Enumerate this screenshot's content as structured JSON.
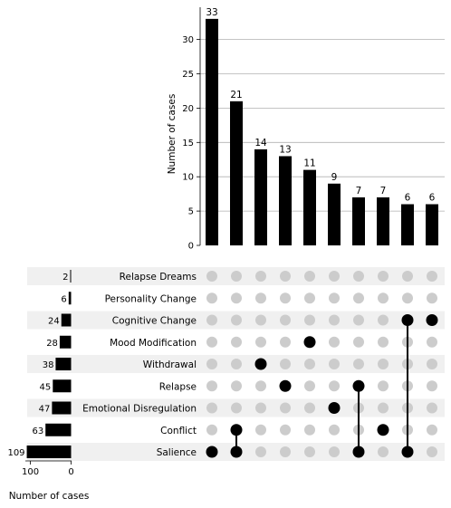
{
  "chart_data": {
    "type": "upset",
    "intersection_axis": {
      "ylabel": "Number of cases",
      "ylim": [
        0,
        35
      ],
      "ticks": [
        0,
        5,
        10,
        15,
        20,
        25,
        30
      ],
      "grid": true
    },
    "set_size_axis": {
      "xlabel": "Number of cases",
      "xlim": [
        0,
        112
      ],
      "ticks": [
        100,
        0
      ]
    },
    "sets": [
      {
        "name": "Relapse Dreams",
        "size": 2
      },
      {
        "name": "Personality Change",
        "size": 6
      },
      {
        "name": "Cognitive Change",
        "size": 24
      },
      {
        "name": "Mood Modification",
        "size": 28
      },
      {
        "name": "Withdrawal",
        "size": 38
      },
      {
        "name": "Relapse",
        "size": 45
      },
      {
        "name": "Emotional Disregulation",
        "size": 47
      },
      {
        "name": "Conflict",
        "size": 63
      },
      {
        "name": "Salience",
        "size": 109
      }
    ],
    "intersections": [
      {
        "count": 33,
        "sets": [
          "Salience"
        ]
      },
      {
        "count": 21,
        "sets": [
          "Conflict",
          "Salience"
        ]
      },
      {
        "count": 14,
        "sets": [
          "Withdrawal"
        ]
      },
      {
        "count": 13,
        "sets": [
          "Relapse"
        ]
      },
      {
        "count": 11,
        "sets": [
          "Mood Modification"
        ]
      },
      {
        "count": 9,
        "sets": [
          "Emotional Disregulation"
        ]
      },
      {
        "count": 7,
        "sets": [
          "Relapse",
          "Salience"
        ]
      },
      {
        "count": 7,
        "sets": [
          "Conflict"
        ]
      },
      {
        "count": 6,
        "sets": [
          "Cognitive Change",
          "Salience"
        ]
      },
      {
        "count": 6,
        "sets": [
          "Cognitive Change"
        ]
      }
    ]
  }
}
